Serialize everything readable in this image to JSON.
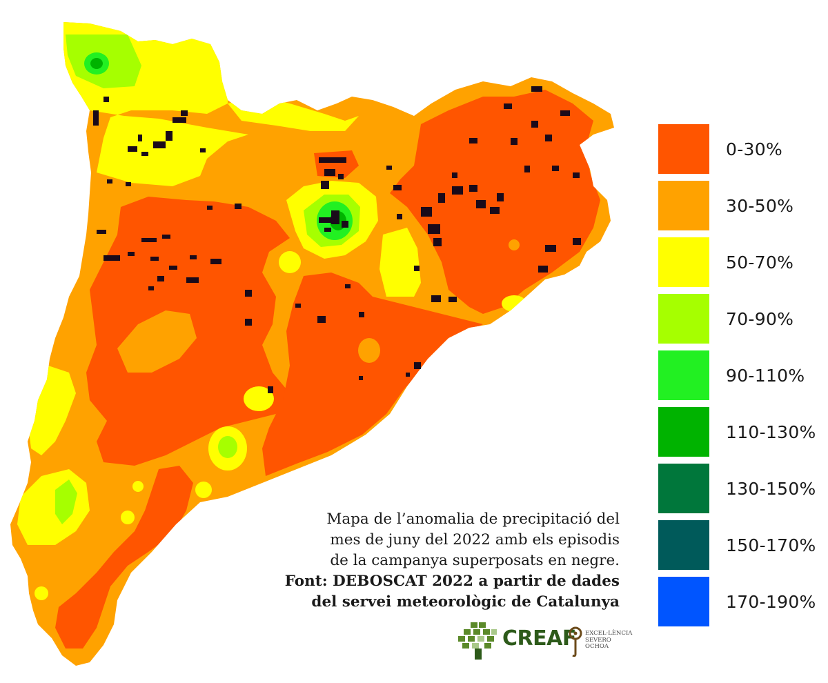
{
  "legend": {
    "items": [
      {
        "label": "0-30%",
        "color": "#ff5500"
      },
      {
        "label": "30-50%",
        "color": "#ffa200"
      },
      {
        "label": "50-70%",
        "color": "#ffff00"
      },
      {
        "label": "70-90%",
        "color": "#a6ff00"
      },
      {
        "label": "90-110%",
        "color": "#22f022"
      },
      {
        "label": "110-130%",
        "color": "#00b300"
      },
      {
        "label": "130-150%",
        "color": "#00773b"
      },
      {
        "label": "150-170%",
        "color": "#005a5a"
      },
      {
        "label": "170-190%",
        "color": "#0055ff"
      }
    ]
  },
  "caption": {
    "line1": "Mapa de l’anomalia de precipitació del",
    "line2": "mes de juny del 2022 amb els episodis",
    "line3": "de la campanya superposats en negre.",
    "line4": "Font: DEBOSCAT 2022 a partir de dades",
    "line5": "del servei meteorològic de Catalunya"
  },
  "logos": {
    "creaf": "CREAF",
    "severo_ochoa": [
      "EXCEL·LÈNCIA",
      "SEVERO",
      "OCHOA"
    ]
  },
  "colors": {
    "episodes": "#1a0a1a",
    "creaf_green": "#2d5a1a"
  }
}
